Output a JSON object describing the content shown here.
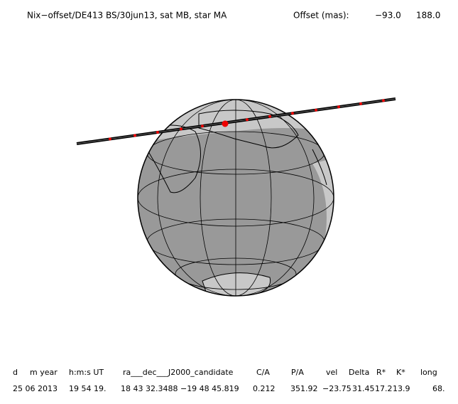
{
  "header": {
    "title": "Nix−offset/DE413 BS/30jun13, sat MB, star MA",
    "offset_label": "Offset (mas):",
    "offset_values": [
      "−93.0",
      "188.0"
    ]
  },
  "table": {
    "columns": [
      "d",
      "m year",
      "h:m:s UT",
      "ra___dec___J2000_candidate",
      "C/A",
      "P/A",
      "vel",
      "Delta",
      "R*",
      "K*",
      "long"
    ],
    "row": [
      "25 06 2013",
      "19 54 19.",
      "18 43 32.3488 −19 48 45.819",
      "0.212",
      "351.92",
      "−23.75",
      "31.45",
      "17.2",
      "13.9",
      "68."
    ]
  }
}
